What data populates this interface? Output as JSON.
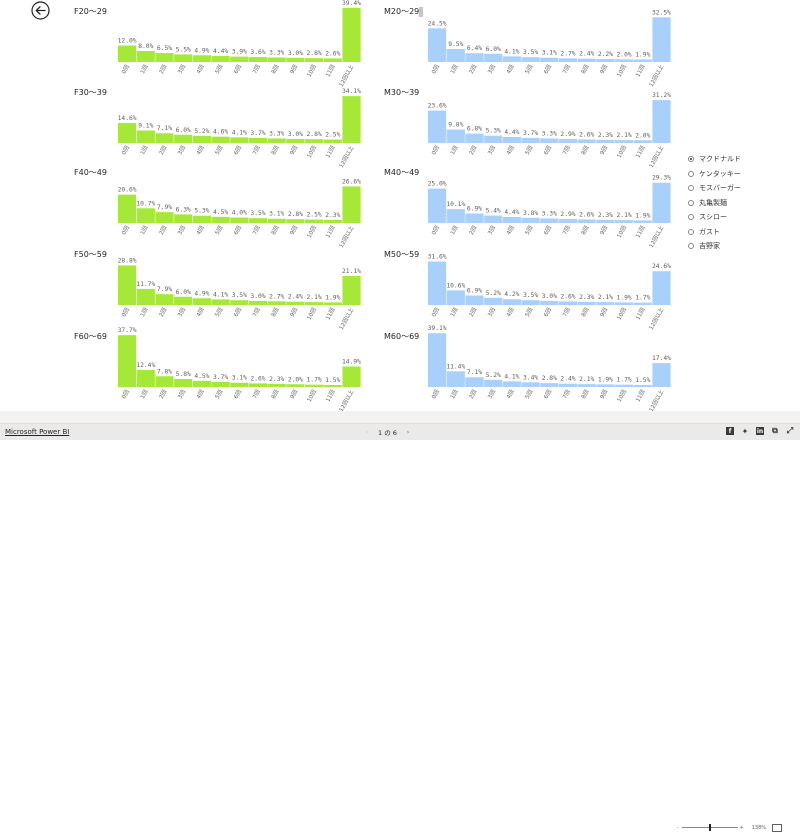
{
  "chart_data": [
    {
      "type": "bar",
      "title": "F20～29",
      "values": [
        12.0,
        8.0,
        6.5,
        5.5,
        4.9,
        4.4,
        3.9,
        3.6,
        3.3,
        3.0,
        2.8,
        2.6,
        39.4
      ]
    },
    {
      "type": "bar",
      "title": "M20～29",
      "values": [
        24.5,
        9.5,
        6.4,
        6.0,
        4.1,
        3.5,
        3.1,
        2.7,
        2.4,
        2.2,
        2.0,
        1.9,
        32.5
      ]
    },
    {
      "type": "bar",
      "title": "F30～39",
      "values": [
        14.6,
        9.1,
        7.1,
        6.0,
        5.2,
        4.6,
        4.1,
        3.7,
        3.3,
        3.0,
        2.8,
        2.5,
        34.1
      ]
    },
    {
      "type": "bar",
      "title": "M30～39",
      "values": [
        23.6,
        9.8,
        6.8,
        5.3,
        4.4,
        3.7,
        3.3,
        2.9,
        2.6,
        2.3,
        2.1,
        2.0,
        31.2
      ]
    },
    {
      "type": "bar",
      "title": "F40～49",
      "values": [
        20.6,
        10.7,
        7.9,
        6.3,
        5.3,
        4.5,
        4.0,
        3.5,
        3.1,
        2.8,
        2.5,
        2.3,
        26.6
      ]
    },
    {
      "type": "bar",
      "title": "M40～49",
      "values": [
        25.0,
        10.1,
        6.9,
        5.4,
        4.4,
        3.8,
        3.3,
        2.9,
        2.6,
        2.3,
        2.1,
        1.9,
        29.3
      ]
    },
    {
      "type": "bar",
      "title": "F50～59",
      "values": [
        28.8,
        11.7,
        7.9,
        6.0,
        4.9,
        4.1,
        3.5,
        3.0,
        2.7,
        2.4,
        2.1,
        1.9,
        21.1
      ]
    },
    {
      "type": "bar",
      "title": "M50～59",
      "values": [
        31.6,
        10.6,
        6.9,
        5.2,
        4.2,
        3.5,
        3.0,
        2.6,
        2.3,
        2.1,
        1.9,
        1.7,
        24.6
      ]
    },
    {
      "type": "bar",
      "title": "F60～69",
      "values": [
        37.7,
        12.4,
        7.8,
        5.8,
        4.5,
        3.7,
        3.1,
        2.6,
        2.3,
        2.0,
        1.7,
        1.5,
        14.9
      ]
    },
    {
      "type": "bar",
      "title": "M60～69",
      "values": [
        39.1,
        11.4,
        7.1,
        5.2,
        4.1,
        3.4,
        2.8,
        2.4,
        2.1,
        1.9,
        1.7,
        1.5,
        17.4
      ]
    }
  ],
  "categories": [
    "0回",
    "1回",
    "2回",
    "3回",
    "4回",
    "5回",
    "6回",
    "7回",
    "8回",
    "9回",
    "10回",
    "11回",
    "12回以上"
  ],
  "colors": {
    "female": "#a6e838",
    "male": "#a9d0fb",
    "accent": "#252423"
  },
  "legend": {
    "selected": 0,
    "items": [
      "マクドナルド",
      "ケンタッキー",
      "モスバーガー",
      "丸亀製麺",
      "スシロー",
      "ガスト",
      "吉野家"
    ]
  },
  "zoom": {
    "minus": "-",
    "plus": "+",
    "value": "138%",
    "level": 0.5
  },
  "footer": {
    "brand": "Microsoft Power BI",
    "page_text": "1 の 6",
    "prev": "‹",
    "next": "›",
    "share_icons": [
      "facebook-icon",
      "twitter-icon",
      "linkedin-icon",
      "embed-icon",
      "fullscreen-icon"
    ]
  }
}
